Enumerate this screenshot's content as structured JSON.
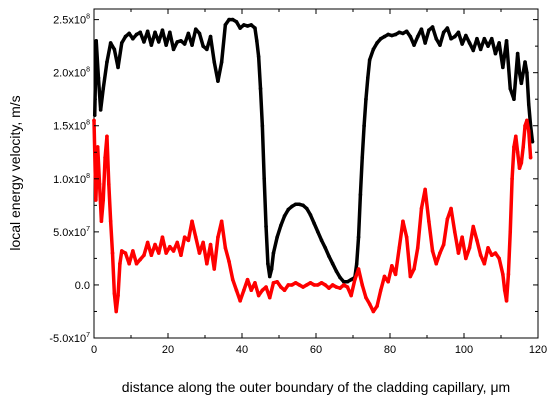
{
  "chart_data": {
    "type": "line",
    "xlabel": "distance along the outer boundary of the cladding capillary, μm",
    "ylabel": "local energy velocity, m/s",
    "xlim": [
      0,
      120
    ],
    "ylim": [
      -50000000,
      260000000
    ],
    "x_ticks": [
      0,
      20,
      40,
      60,
      80,
      100,
      120
    ],
    "y_ticks": [
      {
        "value": -50000000,
        "mantissa": "-5.0x10",
        "exp": "7"
      },
      {
        "value": 0,
        "mantissa": "0.0",
        "exp": ""
      },
      {
        "value": 50000000,
        "mantissa": "5.0x10",
        "exp": "7"
      },
      {
        "value": 100000000,
        "mantissa": "1.0x10",
        "exp": "8"
      },
      {
        "value": 150000000,
        "mantissa": "1.5x10",
        "exp": "8"
      },
      {
        "value": 200000000,
        "mantissa": "2.0x10",
        "exp": "8"
      },
      {
        "value": 250000000,
        "mantissa": "2.5x10",
        "exp": "8"
      }
    ],
    "grid": false,
    "series": [
      {
        "color": "#000000",
        "points": [
          [
            0.2,
            160000000
          ],
          [
            0.6,
            230000000
          ],
          [
            1.2,
            195000000
          ],
          [
            1.8,
            165000000
          ],
          [
            2.5,
            185000000
          ],
          [
            3.5,
            210000000
          ],
          [
            4.5,
            228000000
          ],
          [
            5.5,
            222000000
          ],
          [
            6.5,
            205000000
          ],
          [
            7.5,
            228000000
          ],
          [
            8.5,
            234000000
          ],
          [
            9.5,
            237000000
          ],
          [
            10.5,
            232000000
          ],
          [
            11.5,
            236000000
          ],
          [
            12.5,
            238000000
          ],
          [
            13.5,
            229000000
          ],
          [
            14.5,
            239000000
          ],
          [
            15.5,
            226000000
          ],
          [
            16.5,
            238000000
          ],
          [
            17.5,
            229000000
          ],
          [
            18.5,
            240000000
          ],
          [
            19.5,
            226000000
          ],
          [
            20.5,
            238000000
          ],
          [
            21.5,
            222000000
          ],
          [
            22.5,
            229000000
          ],
          [
            23.5,
            230000000
          ],
          [
            24.5,
            227000000
          ],
          [
            25.5,
            237000000
          ],
          [
            26.5,
            226000000
          ],
          [
            27.5,
            241000000
          ],
          [
            28.5,
            237000000
          ],
          [
            29.5,
            225000000
          ],
          [
            30.5,
            222000000
          ],
          [
            31.5,
            234000000
          ],
          [
            32.5,
            210000000
          ],
          [
            33.5,
            192000000
          ],
          [
            34.5,
            210000000
          ],
          [
            35.5,
            245000000
          ],
          [
            36.5,
            250000000
          ],
          [
            37.5,
            250000000
          ],
          [
            38.5,
            248000000
          ],
          [
            39.5,
            242000000
          ],
          [
            40.5,
            245000000
          ],
          [
            41.5,
            244000000
          ],
          [
            42.5,
            245000000
          ],
          [
            43.5,
            242000000
          ],
          [
            44,
            230000000
          ],
          [
            44.5,
            215000000
          ],
          [
            45,
            185000000
          ],
          [
            45.5,
            150000000
          ],
          [
            46,
            100000000
          ],
          [
            46.5,
            55000000
          ],
          [
            47,
            20000000
          ],
          [
            47.5,
            8000000
          ],
          [
            48,
            15000000
          ],
          [
            48.5,
            30000000
          ],
          [
            49.5,
            45000000
          ],
          [
            50.5,
            56000000
          ],
          [
            51.5,
            65000000
          ],
          [
            52.5,
            71000000
          ],
          [
            53.5,
            74000000
          ],
          [
            54.5,
            76000000
          ],
          [
            55.5,
            76000000
          ],
          [
            56.5,
            75000000
          ],
          [
            57.5,
            72000000
          ],
          [
            58.5,
            66000000
          ],
          [
            59.5,
            58000000
          ],
          [
            60.5,
            50000000
          ],
          [
            61.5,
            42000000
          ],
          [
            62.5,
            35000000
          ],
          [
            63.5,
            27000000
          ],
          [
            64.5,
            20000000
          ],
          [
            65.5,
            13000000
          ],
          [
            66.5,
            7000000
          ],
          [
            67.5,
            3000000
          ],
          [
            68.5,
            3000000
          ],
          [
            69.5,
            5000000
          ],
          [
            70.5,
            7000000
          ],
          [
            71,
            20000000
          ],
          [
            71.5,
            45000000
          ],
          [
            72,
            85000000
          ],
          [
            72.5,
            120000000
          ],
          [
            73,
            150000000
          ],
          [
            73.5,
            175000000
          ],
          [
            74,
            195000000
          ],
          [
            74.5,
            212000000
          ],
          [
            75.5,
            222000000
          ],
          [
            76.5,
            228000000
          ],
          [
            77.5,
            232000000
          ],
          [
            78.5,
            234000000
          ],
          [
            79.5,
            236000000
          ],
          [
            80.5,
            235000000
          ],
          [
            81.5,
            236000000
          ],
          [
            82.5,
            238000000
          ],
          [
            83.5,
            237000000
          ],
          [
            84.5,
            239000000
          ],
          [
            85.5,
            234000000
          ],
          [
            86.5,
            226000000
          ],
          [
            87.5,
            234000000
          ],
          [
            88.5,
            241000000
          ],
          [
            89.5,
            228000000
          ],
          [
            90.5,
            240000000
          ],
          [
            91.5,
            243000000
          ],
          [
            92.5,
            232000000
          ],
          [
            93.5,
            226000000
          ],
          [
            94.5,
            238000000
          ],
          [
            95.5,
            242000000
          ],
          [
            96.5,
            232000000
          ],
          [
            97.5,
            234000000
          ],
          [
            98.5,
            238000000
          ],
          [
            99.5,
            227000000
          ],
          [
            100.5,
            235000000
          ],
          [
            101.5,
            228000000
          ],
          [
            102.5,
            221000000
          ],
          [
            103.5,
            232000000
          ],
          [
            104.5,
            222000000
          ],
          [
            105.5,
            232000000
          ],
          [
            106.5,
            225000000
          ],
          [
            107.5,
            232000000
          ],
          [
            108.5,
            218000000
          ],
          [
            109.5,
            228000000
          ],
          [
            110.5,
            205000000
          ],
          [
            111.5,
            230000000
          ],
          [
            112.5,
            185000000
          ],
          [
            113.5,
            175000000
          ],
          [
            114.5,
            218000000
          ],
          [
            115,
            200000000
          ],
          [
            115.5,
            190000000
          ],
          [
            116.5,
            210000000
          ],
          [
            117,
            200000000
          ],
          [
            117.5,
            170000000
          ],
          [
            118,
            150000000
          ],
          [
            118.5,
            135000000
          ]
        ]
      },
      {
        "color": "#ff0000",
        "points": [
          [
            0,
            155000000
          ],
          [
            0.5,
            80000000
          ],
          [
            1,
            130000000
          ],
          [
            1.5,
            95000000
          ],
          [
            2,
            60000000
          ],
          [
            2.5,
            80000000
          ],
          [
            3,
            120000000
          ],
          [
            3.5,
            140000000
          ],
          [
            4,
            95000000
          ],
          [
            4.5,
            60000000
          ],
          [
            5,
            30000000
          ],
          [
            5.5,
            -8000000
          ],
          [
            6,
            -25000000
          ],
          [
            6.5,
            -10000000
          ],
          [
            7,
            20000000
          ],
          [
            7.5,
            32000000
          ],
          [
            8.5,
            30000000
          ],
          [
            9.5,
            20000000
          ],
          [
            10.5,
            32000000
          ],
          [
            11.5,
            20000000
          ],
          [
            12.5,
            24000000
          ],
          [
            13.5,
            28000000
          ],
          [
            14.5,
            40000000
          ],
          [
            15.5,
            28000000
          ],
          [
            16.5,
            38000000
          ],
          [
            17.5,
            30000000
          ],
          [
            18.5,
            45000000
          ],
          [
            19.5,
            30000000
          ],
          [
            20.5,
            36000000
          ],
          [
            21.5,
            32000000
          ],
          [
            22.5,
            40000000
          ],
          [
            23.5,
            28000000
          ],
          [
            24.5,
            45000000
          ],
          [
            25.5,
            42000000
          ],
          [
            26.5,
            60000000
          ],
          [
            27.5,
            45000000
          ],
          [
            28.5,
            30000000
          ],
          [
            29.5,
            40000000
          ],
          [
            30.5,
            20000000
          ],
          [
            31.5,
            38000000
          ],
          [
            32.5,
            15000000
          ],
          [
            33.5,
            45000000
          ],
          [
            34.5,
            60000000
          ],
          [
            35.5,
            35000000
          ],
          [
            36.5,
            22000000
          ],
          [
            37.5,
            5000000
          ],
          [
            38.5,
            -5000000
          ],
          [
            39.5,
            -15000000
          ],
          [
            40.5,
            -5000000
          ],
          [
            41.5,
            5000000
          ],
          [
            42.5,
            -5000000
          ],
          [
            43.5,
            2000000
          ],
          [
            44.5,
            -10000000
          ],
          [
            45.5,
            -5000000
          ],
          [
            46.5,
            -2000000
          ],
          [
            47.5,
            -12000000
          ],
          [
            48.5,
            2000000
          ],
          [
            49.5,
            3000000
          ],
          [
            50.5,
            -2000000
          ],
          [
            51.5,
            -5000000
          ],
          [
            52.5,
            0
          ],
          [
            53.5,
            0
          ],
          [
            54.5,
            2000000
          ],
          [
            55.5,
            0
          ],
          [
            56.5,
            -2000000
          ],
          [
            57.5,
            0
          ],
          [
            58.5,
            2000000
          ],
          [
            59.5,
            0
          ],
          [
            60.5,
            0
          ],
          [
            61.5,
            2000000
          ],
          [
            62.5,
            0
          ],
          [
            63.5,
            -3000000
          ],
          [
            64.5,
            0
          ],
          [
            65.5,
            -2000000
          ],
          [
            66.5,
            -3000000
          ],
          [
            67.5,
            0
          ],
          [
            68.5,
            -2000000
          ],
          [
            69.5,
            -10000000
          ],
          [
            70.5,
            5000000
          ],
          [
            71.5,
            15000000
          ],
          [
            72.5,
            0
          ],
          [
            73.5,
            -12000000
          ],
          [
            74.5,
            -18000000
          ],
          [
            75.5,
            -25000000
          ],
          [
            76.5,
            -20000000
          ],
          [
            77.5,
            -5000000
          ],
          [
            78.5,
            8000000
          ],
          [
            79.5,
            3000000
          ],
          [
            80.5,
            18000000
          ],
          [
            81.5,
            10000000
          ],
          [
            82.5,
            35000000
          ],
          [
            83.5,
            60000000
          ],
          [
            84.5,
            45000000
          ],
          [
            85.5,
            8000000
          ],
          [
            86.5,
            15000000
          ],
          [
            87.5,
            35000000
          ],
          [
            88.5,
            72000000
          ],
          [
            89.5,
            90000000
          ],
          [
            90.5,
            60000000
          ],
          [
            91.5,
            32000000
          ],
          [
            92.5,
            20000000
          ],
          [
            93.5,
            30000000
          ],
          [
            94.5,
            38000000
          ],
          [
            95.5,
            62000000
          ],
          [
            96.5,
            72000000
          ],
          [
            97.5,
            50000000
          ],
          [
            98.5,
            30000000
          ],
          [
            99.5,
            45000000
          ],
          [
            100.5,
            25000000
          ],
          [
            101.5,
            35000000
          ],
          [
            102.5,
            55000000
          ],
          [
            103.5,
            42000000
          ],
          [
            104.5,
            28000000
          ],
          [
            105.5,
            20000000
          ],
          [
            106.5,
            35000000
          ],
          [
            107.5,
            28000000
          ],
          [
            108.5,
            30000000
          ],
          [
            109.5,
            25000000
          ],
          [
            110.5,
            10000000
          ],
          [
            111,
            -5000000
          ],
          [
            111.5,
            -15000000
          ],
          [
            112,
            10000000
          ],
          [
            112.5,
            50000000
          ],
          [
            113,
            100000000
          ],
          [
            113.5,
            130000000
          ],
          [
            114,
            140000000
          ],
          [
            114.5,
            125000000
          ],
          [
            115,
            110000000
          ],
          [
            115.5,
            115000000
          ],
          [
            116,
            130000000
          ],
          [
            116.5,
            150000000
          ],
          [
            117,
            155000000
          ],
          [
            117.5,
            145000000
          ],
          [
            118,
            120000000
          ]
        ]
      }
    ]
  }
}
